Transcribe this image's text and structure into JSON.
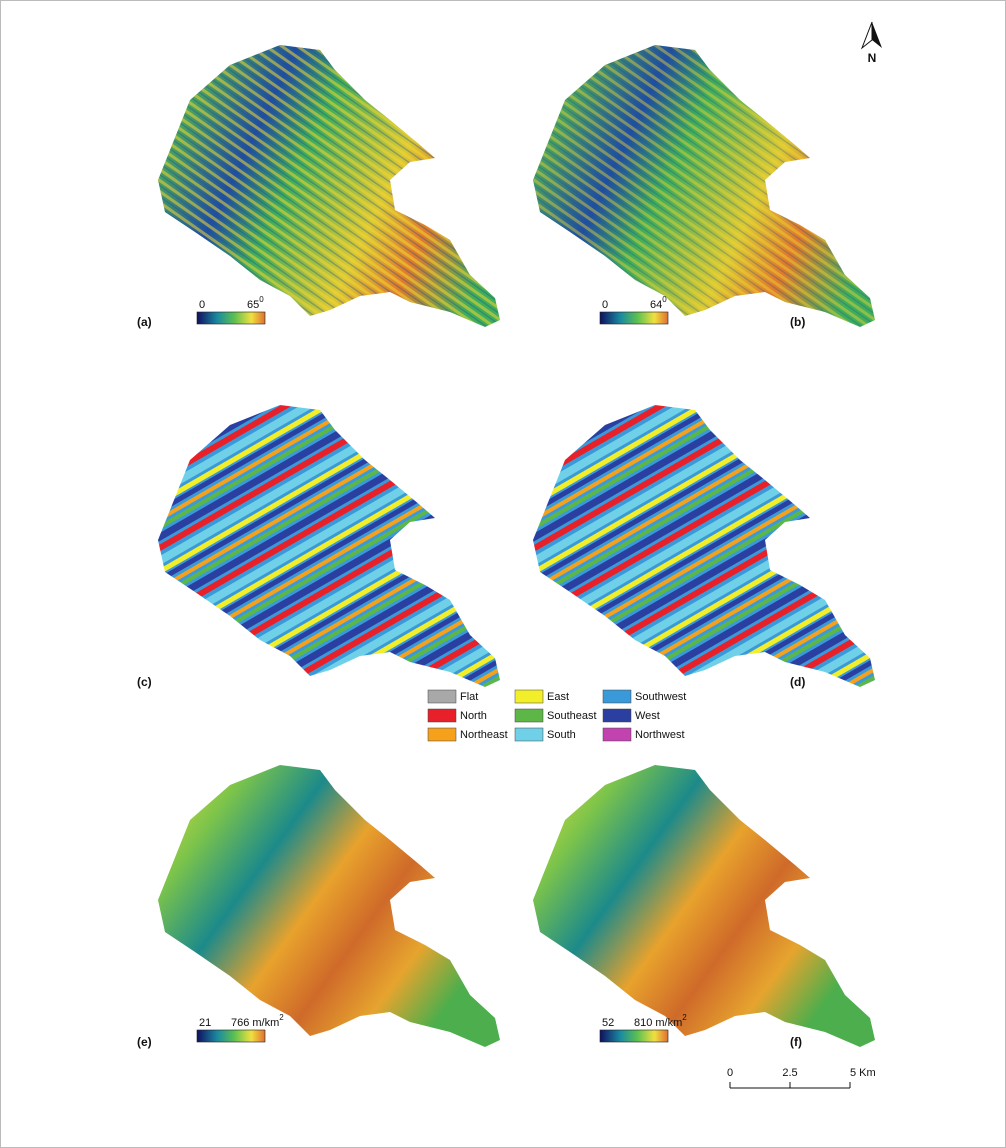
{
  "north_arrow": {
    "label": "N"
  },
  "panels": [
    {
      "label": "(a)",
      "colorbar": {
        "min": "0",
        "max": "65",
        "sup": "0"
      }
    },
    {
      "label": "(b)",
      "colorbar": {
        "min": "0",
        "max": "64",
        "sup": "0"
      }
    },
    {
      "label": "(c)"
    },
    {
      "label": "(d)"
    },
    {
      "label": "(e)",
      "colorbar": {
        "min": "21",
        "max": "766",
        "unit": "m/km",
        "sup": "2"
      }
    },
    {
      "label": "(f)",
      "colorbar": {
        "min": "52",
        "max": "810",
        "unit": "m/km",
        "sup": "2"
      }
    }
  ],
  "aspect_legend": [
    {
      "name": "Flat",
      "color": "#a8a8a8"
    },
    {
      "name": "North",
      "color": "#e8202a"
    },
    {
      "name": "Northeast",
      "color": "#f5a11c"
    },
    {
      "name": "East",
      "color": "#f2ee2a"
    },
    {
      "name": "Southeast",
      "color": "#5cb746"
    },
    {
      "name": "South",
      "color": "#6fd0e8"
    },
    {
      "name": "Southwest",
      "color": "#3a9ad9"
    },
    {
      "name": "West",
      "color": "#2b3fa0"
    },
    {
      "name": "Northwest",
      "color": "#c243b0"
    }
  ],
  "scale_bar": {
    "ticks": [
      "0",
      "2.5",
      "5 Km"
    ]
  }
}
